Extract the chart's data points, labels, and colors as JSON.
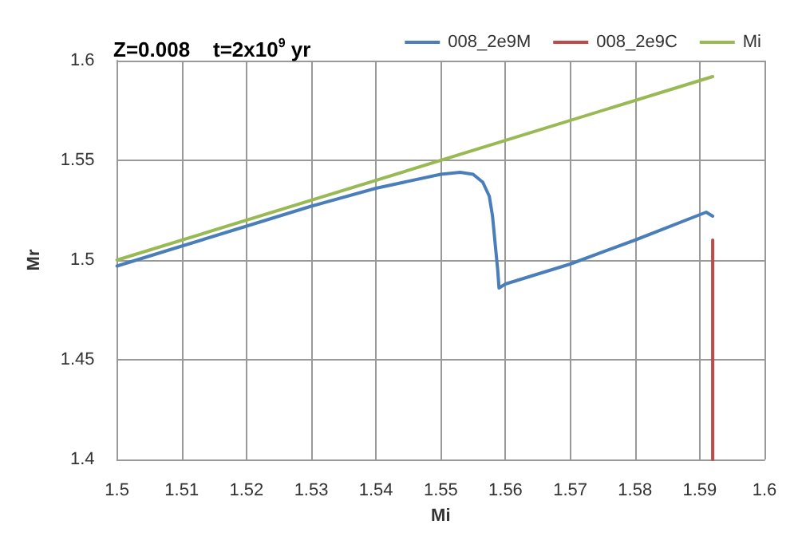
{
  "chart_data": {
    "type": "line",
    "title": "Z=0.008    t=2x10$^{9}$ yr",
    "xlabel": "Mi",
    "ylabel": "Mr",
    "xlim": [
      1.5,
      1.6
    ],
    "xticks": [
      1.5,
      1.51,
      1.52,
      1.53,
      1.54,
      1.55,
      1.56,
      1.57,
      1.58,
      1.59,
      1.6
    ],
    "ylim": [
      1.4,
      1.6
    ],
    "yticks": [
      1.4,
      1.45,
      1.5,
      1.55,
      1.6
    ],
    "grid": true,
    "legend": "top right",
    "marker": "none",
    "line_style": "solid",
    "series": [
      {
        "name": "008_2e9M",
        "color": "#4a7ebb",
        "x": [
          1.5,
          1.51,
          1.52,
          1.53,
          1.54,
          1.55,
          1.553,
          1.555,
          1.5565,
          1.5575,
          1.558,
          1.5585,
          1.5588,
          1.559,
          1.56,
          1.57,
          1.58,
          1.591,
          1.592
        ],
        "values": [
          1.497,
          1.507,
          1.517,
          1.527,
          1.536,
          1.543,
          1.544,
          1.543,
          1.539,
          1.532,
          1.522,
          1.505,
          1.495,
          1.486,
          1.488,
          1.498,
          1.51,
          1.524,
          1.522
        ]
      },
      {
        "name": "008_2e9C",
        "color": "#be4b48",
        "x": [
          1.592,
          1.592
        ],
        "values": [
          1.4,
          1.51
        ]
      },
      {
        "name": "Mi",
        "color": "#98b954",
        "x": [
          1.5,
          1.592
        ],
        "values": [
          1.5,
          1.592
        ]
      }
    ]
  }
}
